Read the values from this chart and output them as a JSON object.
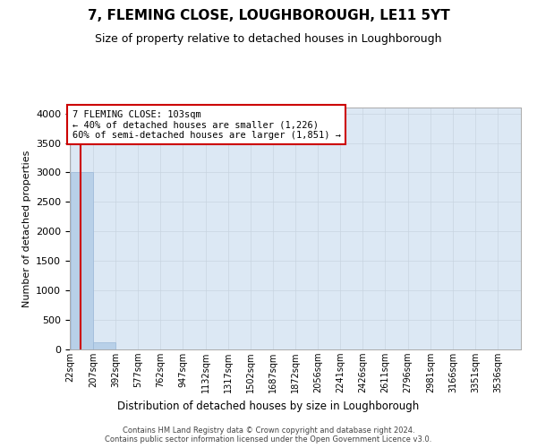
{
  "title": "7, FLEMING CLOSE, LOUGHBOROUGH, LE11 5YT",
  "subtitle": "Size of property relative to detached houses in Loughborough",
  "xlabel": "Distribution of detached houses by size in Loughborough",
  "ylabel": "Number of detached properties",
  "footer_line1": "Contains HM Land Registry data © Crown copyright and database right 2024.",
  "footer_line2": "Contains public sector information licensed under the Open Government Licence v3.0.",
  "bar_edges": [
    22,
    207,
    392,
    577,
    762,
    947,
    1132,
    1317,
    1502,
    1687,
    1872,
    2056,
    2241,
    2426,
    2611,
    2796,
    2981,
    3166,
    3351,
    3536,
    3721
  ],
  "bar_heights": [
    3000,
    120,
    0,
    0,
    0,
    0,
    0,
    0,
    0,
    0,
    0,
    0,
    0,
    0,
    0,
    0,
    0,
    0,
    0,
    0
  ],
  "bar_color": "#b8d0e8",
  "bar_edge_color": "#9ab8d8",
  "grid_color": "#c8d4e0",
  "background_color": "#dce8f4",
  "property_size": 103,
  "vline_color": "#cc0000",
  "annotation_text": "7 FLEMING CLOSE: 103sqm\n← 40% of detached houses are smaller (1,226)\n60% of semi-detached houses are larger (1,851) →",
  "annotation_box_color": "#cc0000",
  "annotation_bg": "#ffffff",
  "ylim": [
    0,
    4100
  ],
  "yticks": [
    0,
    500,
    1000,
    1500,
    2000,
    2500,
    3000,
    3500,
    4000
  ],
  "title_fontsize": 11,
  "subtitle_fontsize": 9,
  "tick_label_fontsize": 7,
  "ylabel_fontsize": 8,
  "xlabel_fontsize": 8.5,
  "annotation_fontsize": 7.5
}
